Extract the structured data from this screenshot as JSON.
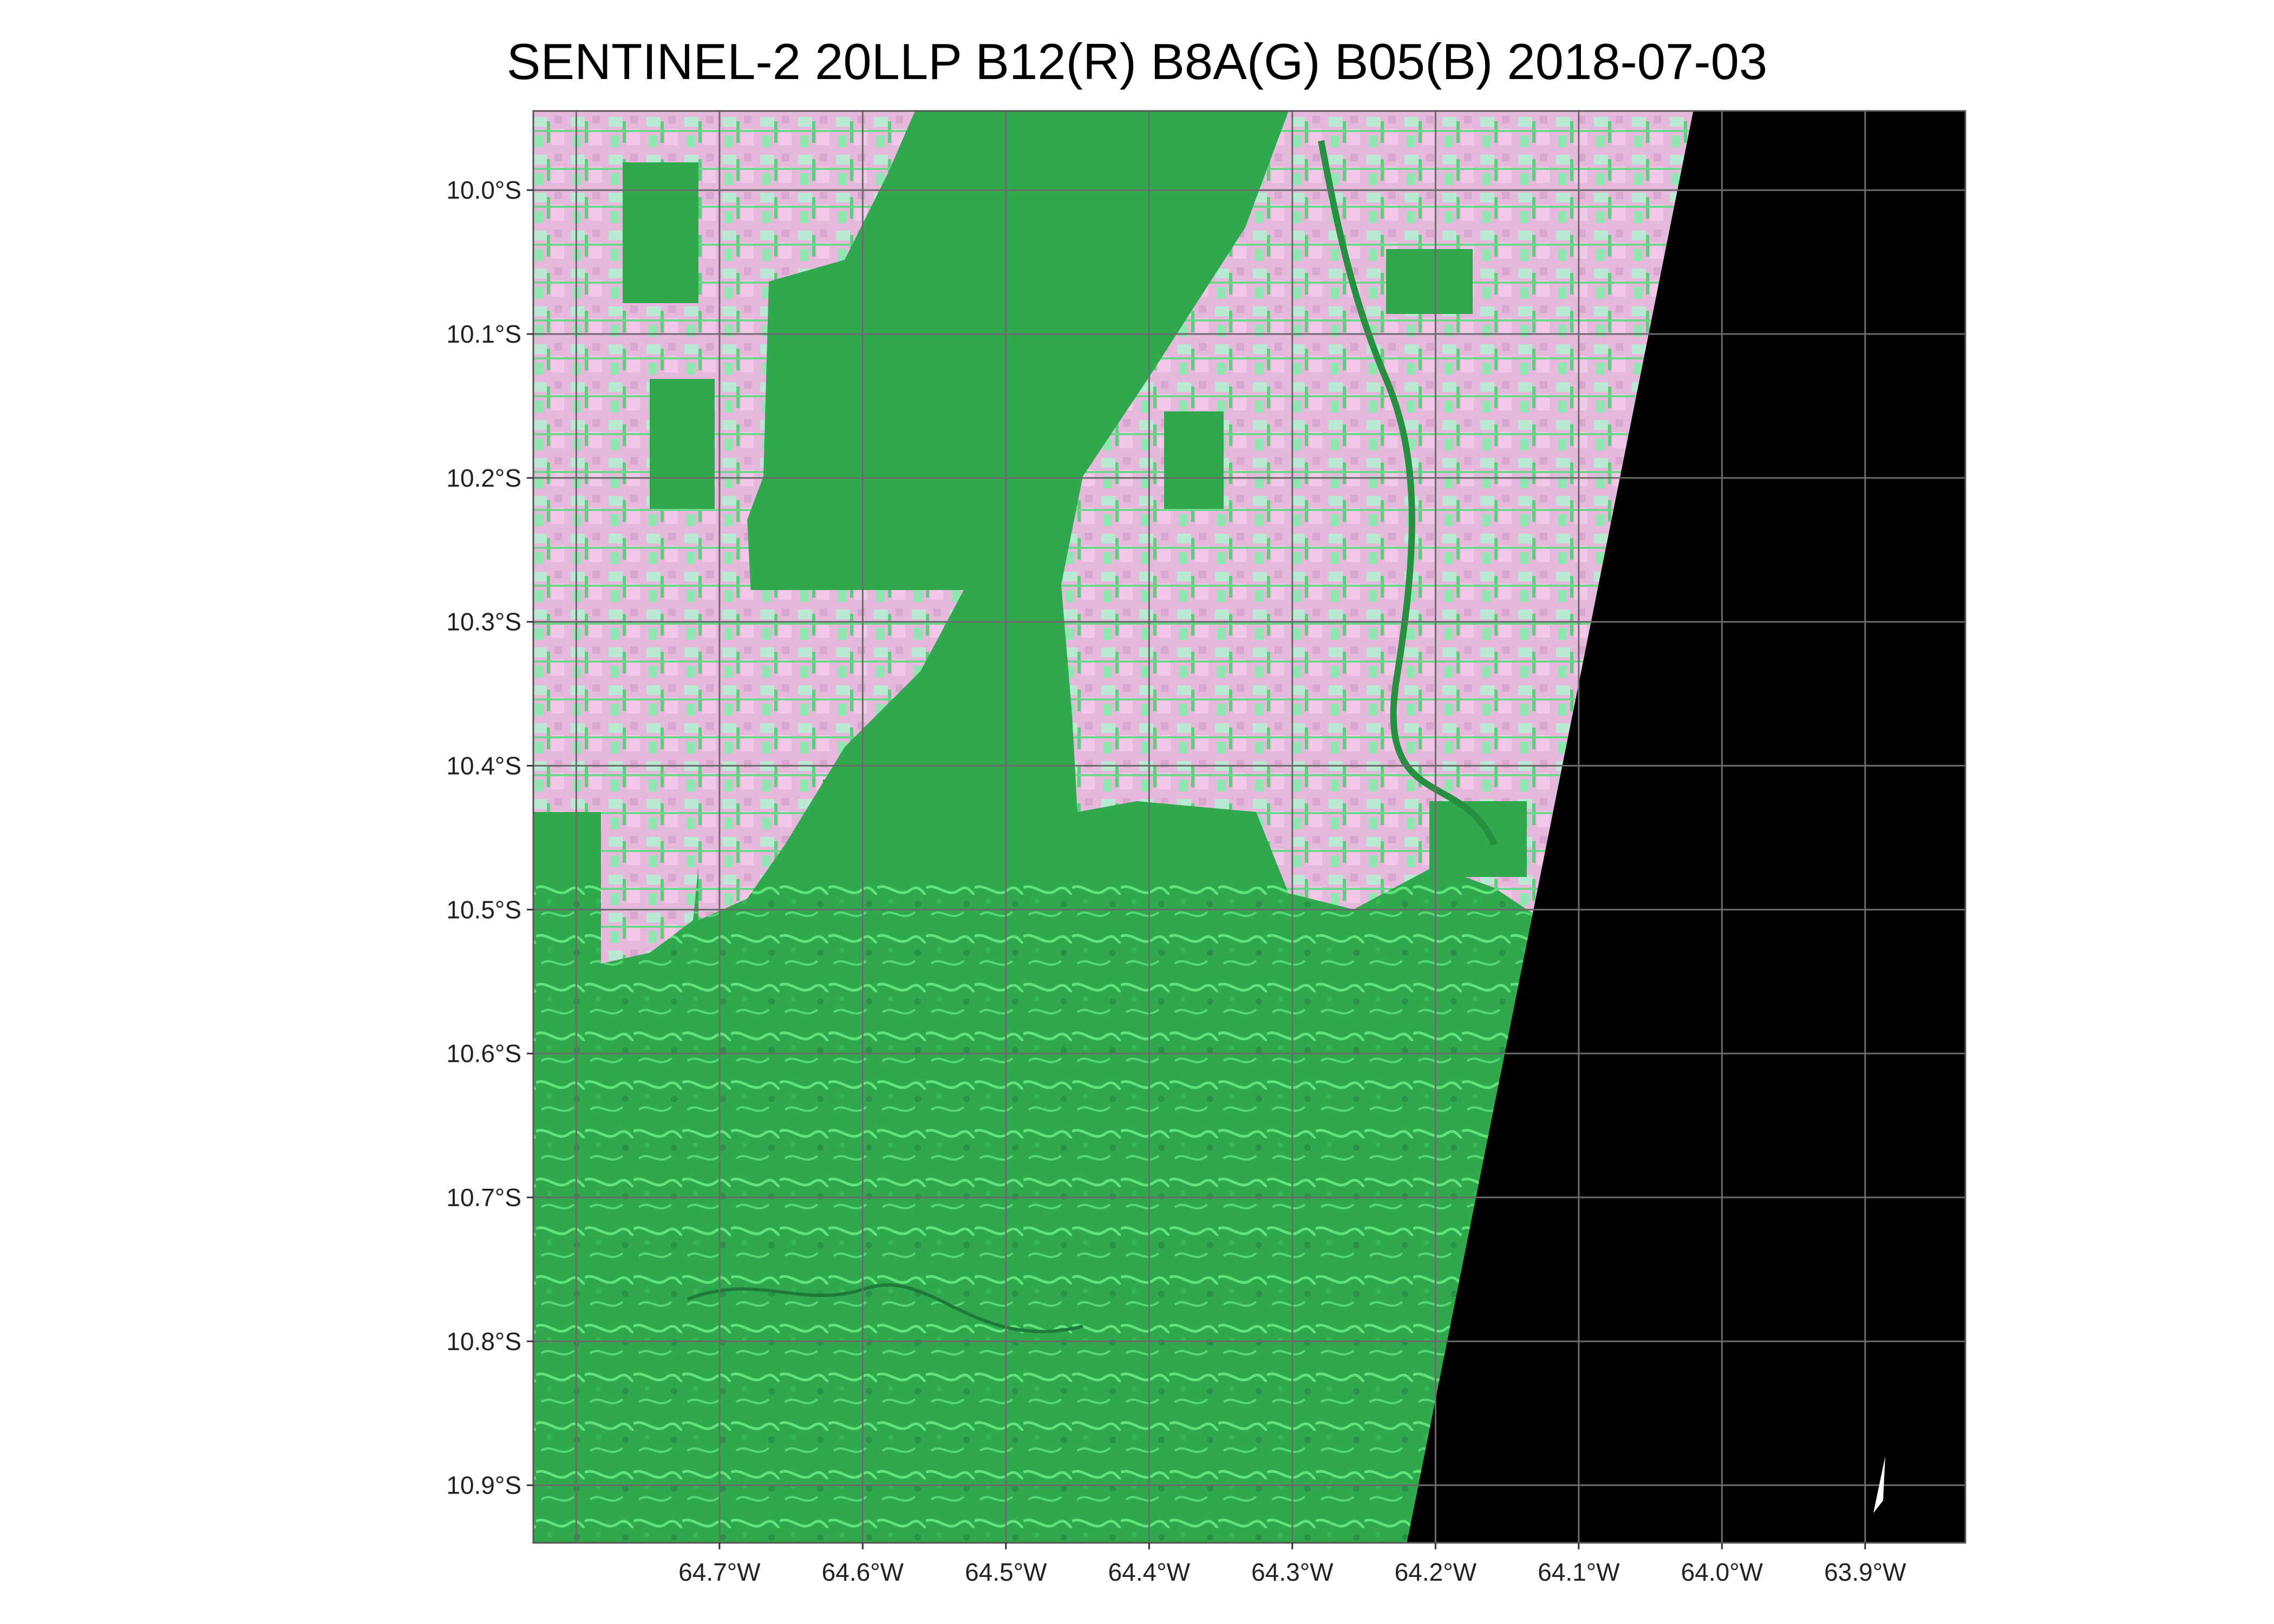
{
  "title": "SENTINEL-2 20LLP B12(R) B8A(G) B05(B) 2018-07-03",
  "colors": {
    "forest": "#2fa84e",
    "forest_dark": "#268f40",
    "floodplain": "#5fe87a",
    "pasture": "#e8b7dd",
    "regrowth": "#7ff0b3",
    "no_data": "#000000",
    "graticule": "#6b6b6b",
    "north_arrow": "#ffffff"
  },
  "map": {
    "lon_range": [
      -64.83,
      -63.83
    ],
    "lat_range": [
      -10.94,
      -9.945
    ],
    "no_data_edge": [
      [
        -64.02,
        -9.945
      ],
      [
        -64.22,
        -10.94
      ]
    ]
  },
  "x_ticks": [
    {
      "lon": -64.7,
      "label": "64.7°W"
    },
    {
      "lon": -64.6,
      "label": "64.6°W"
    },
    {
      "lon": -64.5,
      "label": "64.5°W"
    },
    {
      "lon": -64.4,
      "label": "64.4°W"
    },
    {
      "lon": -64.3,
      "label": "64.3°W"
    },
    {
      "lon": -64.2,
      "label": "64.2°W"
    },
    {
      "lon": -64.1,
      "label": "64.1°W"
    },
    {
      "lon": -64.0,
      "label": "64.0°W"
    },
    {
      "lon": -63.9,
      "label": "63.9°W"
    }
  ],
  "y_ticks": [
    {
      "lat": -10.0,
      "label": "10.0°S"
    },
    {
      "lat": -10.1,
      "label": "10.1°S"
    },
    {
      "lat": -10.2,
      "label": "10.2°S"
    },
    {
      "lat": -10.3,
      "label": "10.3°S"
    },
    {
      "lat": -10.4,
      "label": "10.4°S"
    },
    {
      "lat": -10.5,
      "label": "10.5°S"
    },
    {
      "lat": -10.6,
      "label": "10.6°S"
    },
    {
      "lat": -10.7,
      "label": "10.7°S"
    },
    {
      "lat": -10.8,
      "label": "10.8°S"
    },
    {
      "lat": -10.9,
      "label": "10.9°S"
    }
  ]
}
